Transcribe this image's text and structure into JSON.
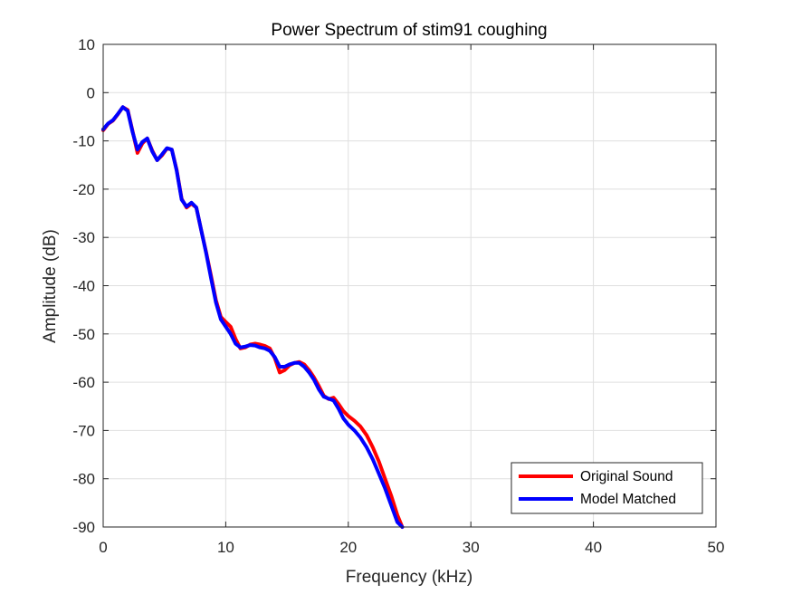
{
  "chart_data": {
    "type": "line",
    "title": "Power Spectrum of stim91 coughing",
    "xlabel": "Frequency (kHz)",
    "ylabel": "Amplitude (dB)",
    "xlim": [
      0,
      50
    ],
    "ylim": [
      -90,
      10
    ],
    "xticks": [
      0,
      10,
      20,
      30,
      40,
      50
    ],
    "yticks": [
      10,
      0,
      -10,
      -20,
      -30,
      -40,
      -50,
      -60,
      -70,
      -80,
      -90
    ],
    "grid": true,
    "legend_position": "bottom-right",
    "series": [
      {
        "name": "Original Sound",
        "color": "#ff0000",
        "x": [
          0,
          0.4,
          0.8,
          1.2,
          1.6,
          2.0,
          2.4,
          2.8,
          3.2,
          3.6,
          4.0,
          4.4,
          4.8,
          5.2,
          5.6,
          6.0,
          6.4,
          6.8,
          7.2,
          7.6,
          8.0,
          8.4,
          8.8,
          9.2,
          9.6,
          10.0,
          10.4,
          10.8,
          11.2,
          11.6,
          12.0,
          12.4,
          12.8,
          13.2,
          13.6,
          14.0,
          14.4,
          14.8,
          15.2,
          15.6,
          16.0,
          16.4,
          16.8,
          17.2,
          17.6,
          18.0,
          18.4,
          18.8,
          19.2,
          19.6,
          20.0,
          20.5,
          21.0,
          21.5,
          22.0,
          22.5,
          23.0,
          23.5,
          24.0,
          24.4
        ],
        "y": [
          -7.8,
          -6.5,
          -5.8,
          -4.5,
          -3.0,
          -3.6,
          -8.0,
          -12.5,
          -10.5,
          -9.5,
          -12.0,
          -14.0,
          -13.0,
          -11.6,
          -11.8,
          -16.0,
          -22.0,
          -23.8,
          -23.0,
          -23.8,
          -28.5,
          -33.0,
          -38.0,
          -43.0,
          -46.5,
          -47.5,
          -48.5,
          -51.0,
          -53.0,
          -52.8,
          -52.2,
          -52.0,
          -52.2,
          -52.5,
          -53.0,
          -55.0,
          -58.0,
          -57.5,
          -56.5,
          -56.0,
          -55.8,
          -56.3,
          -57.5,
          -59.0,
          -60.8,
          -62.8,
          -63.5,
          -63.2,
          -64.5,
          -66.0,
          -67.0,
          -68.0,
          -69.2,
          -71.0,
          -73.5,
          -76.5,
          -80.0,
          -83.5,
          -87.5,
          -90.0
        ]
      },
      {
        "name": "Model Matched",
        "color": "#0000ff",
        "x": [
          0,
          0.4,
          0.8,
          1.2,
          1.6,
          2.0,
          2.4,
          2.8,
          3.2,
          3.6,
          4.0,
          4.4,
          4.8,
          5.2,
          5.6,
          6.0,
          6.4,
          6.8,
          7.2,
          7.6,
          8.0,
          8.4,
          8.8,
          9.2,
          9.6,
          10.0,
          10.4,
          10.8,
          11.2,
          11.6,
          12.0,
          12.4,
          12.8,
          13.2,
          13.6,
          14.0,
          14.4,
          14.8,
          15.2,
          15.6,
          16.0,
          16.4,
          16.8,
          17.2,
          17.6,
          18.0,
          18.4,
          18.8,
          19.2,
          19.6,
          20.0,
          20.5,
          21.0,
          21.5,
          22.0,
          22.5,
          23.0,
          23.5,
          24.0,
          24.4
        ],
        "y": [
          -7.6,
          -6.4,
          -5.7,
          -4.4,
          -3.0,
          -3.8,
          -8.2,
          -11.8,
          -10.2,
          -9.5,
          -12.2,
          -14.0,
          -12.8,
          -11.5,
          -11.8,
          -16.2,
          -22.2,
          -23.6,
          -22.8,
          -23.8,
          -28.5,
          -33.2,
          -38.5,
          -43.5,
          -47.0,
          -48.5,
          -50.0,
          -52.0,
          -52.8,
          -52.6,
          -52.3,
          -52.4,
          -52.8,
          -53.0,
          -53.5,
          -54.8,
          -56.8,
          -56.8,
          -56.3,
          -56.0,
          -56.0,
          -56.8,
          -58.0,
          -59.5,
          -61.5,
          -63.0,
          -63.4,
          -63.8,
          -65.5,
          -67.5,
          -68.8,
          -70.0,
          -71.5,
          -73.5,
          -76.0,
          -79.0,
          -82.0,
          -85.5,
          -89.0,
          -90.0
        ]
      }
    ]
  }
}
